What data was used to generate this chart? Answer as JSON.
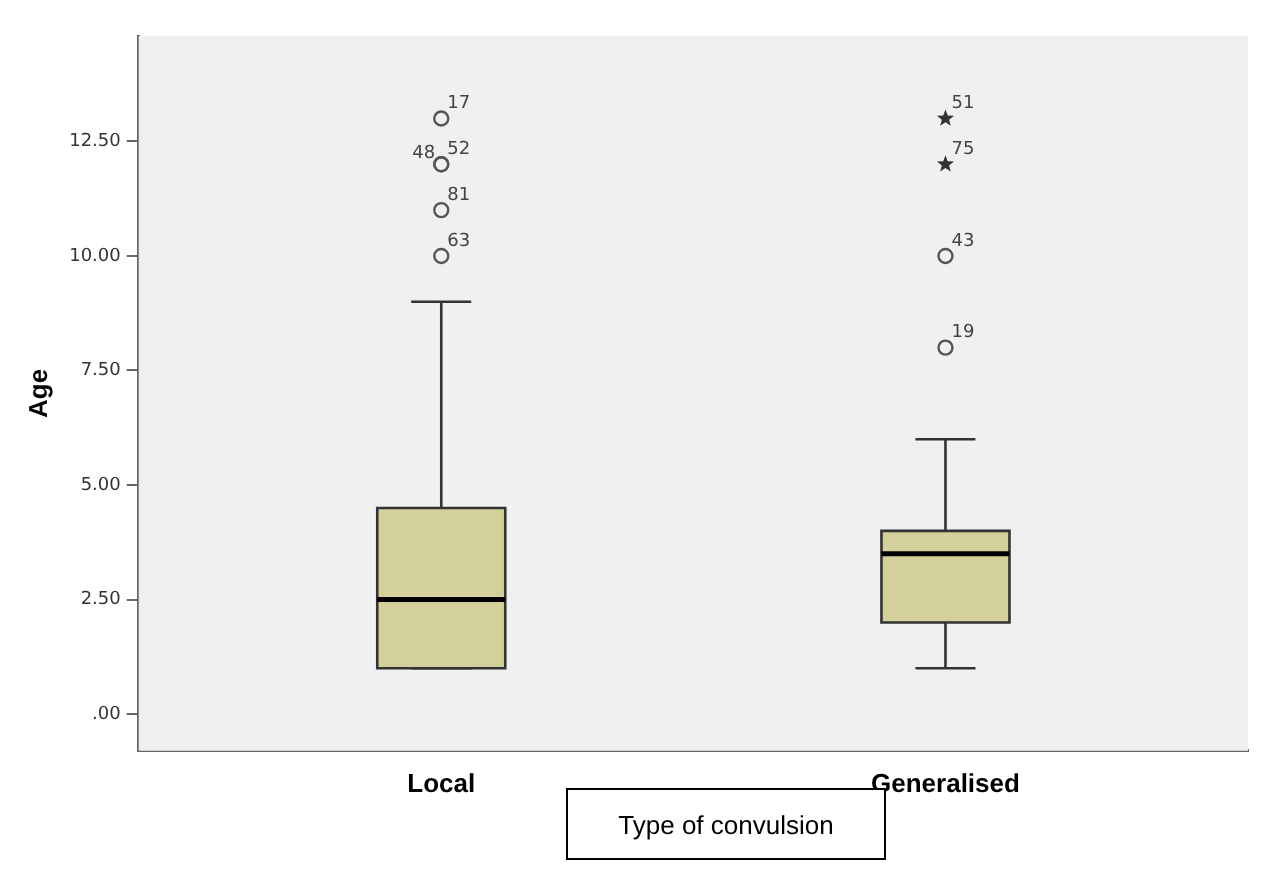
{
  "chart_data": {
    "type": "box",
    "xlabel": "Type of convulsion",
    "ylabel": "Age",
    "categories": [
      "Local",
      "Generalised"
    ],
    "ylim": [
      -0.8,
      14.8
    ],
    "yticks": [
      {
        "value": 0,
        "label": ".00"
      },
      {
        "value": 2.5,
        "label": "2.50"
      },
      {
        "value": 5,
        "label": "5.00"
      },
      {
        "value": 7.5,
        "label": "7.50"
      },
      {
        "value": 10,
        "label": "10.00"
      },
      {
        "value": 12.5,
        "label": "12.50"
      }
    ],
    "grid": false,
    "legend": false,
    "series": [
      {
        "color": "#d4d09a",
        "boxes": [
          {
            "low": 1,
            "q1": 1,
            "median": 2.5,
            "q3": 4.5,
            "high": 9
          },
          {
            "low": 1,
            "q1": 2,
            "median": 3.5,
            "q3": 4,
            "high": 6
          }
        ]
      },
      {
        "type": "scatter",
        "marker": "circle",
        "color": "#555555",
        "x": [
          "Local",
          "Local",
          "Local",
          "Local",
          "Local",
          "Generalised",
          "Generalised"
        ],
        "values": [
          10,
          11,
          12,
          12,
          13,
          8,
          10
        ]
      },
      {
        "type": "scatter",
        "marker": "star",
        "color": "#333333",
        "x": [
          "Generalised",
          "Generalised"
        ],
        "values": [
          13,
          12
        ]
      }
    ],
    "annotations": [
      {
        "text": "17",
        "x": "Local",
        "y": 13
      },
      {
        "text": "48",
        "x": "Local",
        "y": 12
      },
      {
        "text": "52",
        "x": "Local",
        "y": 12
      },
      {
        "text": "81",
        "x": "Local",
        "y": 11
      },
      {
        "text": "63",
        "x": "Local",
        "y": 10
      },
      {
        "text": "51",
        "x": "Generalised",
        "y": 13
      },
      {
        "text": "75",
        "x": "Generalised",
        "y": 12
      },
      {
        "text": "43",
        "x": "Generalised",
        "y": 10
      },
      {
        "text": "19",
        "x": "Generalised",
        "y": 8
      }
    ]
  }
}
